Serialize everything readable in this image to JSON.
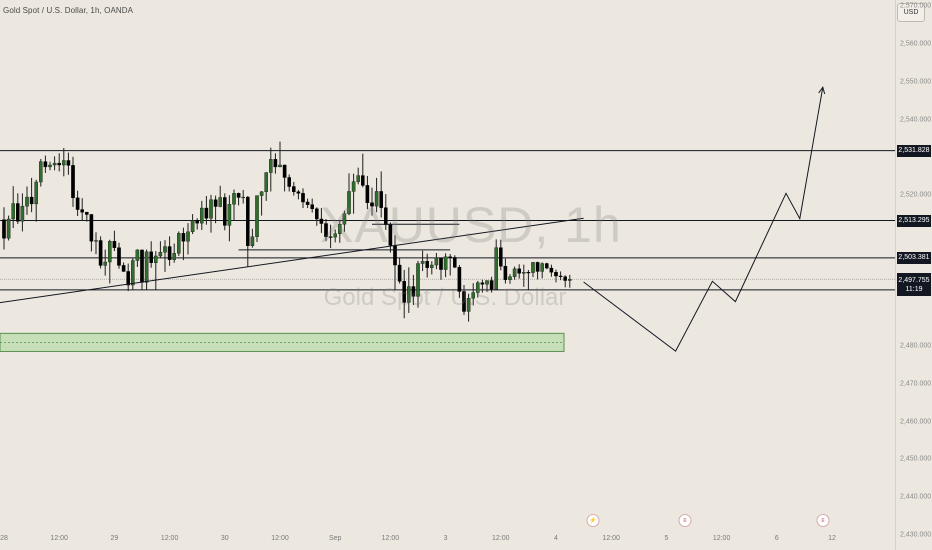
{
  "header": {
    "title": "Gold Spot / U.S. Dollar, 1h, OANDA"
  },
  "currency_button": "USD",
  "watermark": {
    "symbol": "XAUUSD, 1h",
    "description": "Gold Spot / U.S. Dollar"
  },
  "price_axis": {
    "ticks": [
      "2,570.000",
      "2,560.000",
      "2,550.000",
      "2,540.000",
      "2,520.000",
      "2,480.000",
      "2,470.000",
      "2,460.000",
      "2,450.000",
      "2,440.000",
      "2,430.000"
    ],
    "tick_values": [
      2570,
      2560,
      2550,
      2540,
      2520,
      2480,
      2470,
      2460,
      2450,
      2440,
      2430
    ]
  },
  "time_axis": {
    "labels": [
      "28",
      "12:00",
      "29",
      "12:00",
      "30",
      "12:00",
      "Sep",
      "12:00",
      "3",
      "12:00",
      "4",
      "12:00",
      "5",
      "12:00",
      "6",
      "12"
    ],
    "label_index": [
      0,
      12,
      24,
      36,
      48,
      60,
      72,
      84,
      96,
      108,
      120,
      132,
      144,
      156,
      168,
      180
    ]
  },
  "levels": [
    {
      "label": "2,531.828",
      "value": 2531.828
    },
    {
      "label": "2,513.295",
      "value": 2513.295
    },
    {
      "label": "2,503.381",
      "value": 2503.381
    },
    {
      "label": "2,494.928",
      "value": 2494.928
    }
  ],
  "current_price": {
    "value_label": "2,497.755",
    "value": 2497.755,
    "countdown": "11:19"
  },
  "support_zone": {
    "low": 2478.6,
    "high": 2483.4
  },
  "chart_data": {
    "type": "candlestick",
    "symbol": "XAUUSD",
    "title": "Gold Spot / U.S. Dollar, 1h, OANDA",
    "y_range": [
      2426,
      2590
    ],
    "candles": [
      [
        2513.5,
        2516.8,
        2505.6,
        2508.6
      ],
      [
        2508.6,
        2514.6,
        2508.0,
        2513.7
      ],
      [
        2513.7,
        2522.4,
        2511.3,
        2517.8
      ],
      [
        2517.8,
        2520.5,
        2512.4,
        2513.1
      ],
      [
        2513.1,
        2520.5,
        2510.4,
        2517.1
      ],
      [
        2517.1,
        2522.3,
        2514.8,
        2519.5
      ],
      [
        2519.5,
        2524.6,
        2515.5,
        2517.7
      ],
      [
        2517.7,
        2524.1,
        2513.0,
        2523.5
      ],
      [
        2523.5,
        2529.6,
        2522.3,
        2528.9
      ],
      [
        2528.9,
        2530.5,
        2525.9,
        2527.5
      ],
      [
        2527.5,
        2528.9,
        2526.6,
        2528.0
      ],
      [
        2528.0,
        2530.3,
        2526.6,
        2528.5
      ],
      [
        2528.5,
        2531.1,
        2526.3,
        2528.0
      ],
      [
        2528.0,
        2532.5,
        2525.0,
        2529.2
      ],
      [
        2529.2,
        2531.3,
        2525.4,
        2527.9
      ],
      [
        2527.9,
        2530.2,
        2516.9,
        2519.3
      ],
      [
        2519.3,
        2521.2,
        2514.5,
        2516.2
      ],
      [
        2516.2,
        2519.2,
        2513.3,
        2515.5
      ],
      [
        2515.5,
        2515.6,
        2513.0,
        2514.9
      ],
      [
        2514.9,
        2515.0,
        2505.1,
        2507.8
      ],
      [
        2507.8,
        2510.2,
        2504.4,
        2508.0
      ],
      [
        2508.0,
        2509.1,
        2500.6,
        2501.4
      ],
      [
        2501.4,
        2505.6,
        2498.7,
        2502.3
      ],
      [
        2502.3,
        2508.2,
        2496.6,
        2507.8
      ],
      [
        2507.8,
        2510.6,
        2505.2,
        2506.1
      ],
      [
        2506.1,
        2507.4,
        2500.5,
        2501.4
      ],
      [
        2501.4,
        2502.2,
        2499.7,
        2499.8
      ],
      [
        2499.8,
        2501.9,
        2494.6,
        2496.2
      ],
      [
        2496.2,
        2503.5,
        2495.0,
        2502.7
      ],
      [
        2502.7,
        2505.7,
        2501.0,
        2505.5
      ],
      [
        2505.5,
        2505.6,
        2494.9,
        2496.9
      ],
      [
        2496.9,
        2505.6,
        2495.0,
        2505.0
      ],
      [
        2505.0,
        2507.8,
        2500.8,
        2502.1
      ],
      [
        2502.1,
        2505.2,
        2494.9,
        2503.9
      ],
      [
        2503.9,
        2507.8,
        2503.5,
        2504.9
      ],
      [
        2504.9,
        2508.1,
        2499.7,
        2506.4
      ],
      [
        2506.4,
        2509.1,
        2501.3,
        2502.9
      ],
      [
        2502.9,
        2507.2,
        2502.1,
        2504.6
      ],
      [
        2504.6,
        2510.4,
        2503.9,
        2509.9
      ],
      [
        2509.9,
        2511.4,
        2502.8,
        2507.8
      ],
      [
        2507.8,
        2512.6,
        2504.3,
        2510.3
      ],
      [
        2510.3,
        2515.0,
        2509.7,
        2513.3
      ],
      [
        2513.3,
        2513.9,
        2510.9,
        2512.6
      ],
      [
        2512.6,
        2518.5,
        2510.8,
        2516.6
      ],
      [
        2516.6,
        2519.8,
        2512.2,
        2513.9
      ],
      [
        2513.9,
        2520.1,
        2510.1,
        2518.8
      ],
      [
        2518.8,
        2519.9,
        2512.6,
        2517.0
      ],
      [
        2517.0,
        2522.5,
        2516.8,
        2519.4
      ],
      [
        2519.4,
        2520.5,
        2510.7,
        2512.0
      ],
      [
        2512.0,
        2520.0,
        2507.8,
        2517.6
      ],
      [
        2517.6,
        2521.5,
        2513.3,
        2520.5
      ],
      [
        2520.5,
        2520.7,
        2517.3,
        2519.4
      ],
      [
        2519.4,
        2521.4,
        2517.8,
        2519.5
      ],
      [
        2519.5,
        2519.8,
        2501.0,
        2506.6
      ],
      [
        2506.6,
        2511.1,
        2506.1,
        2509.0
      ],
      [
        2509.0,
        2519.9,
        2507.6,
        2519.9
      ],
      [
        2519.9,
        2521.1,
        2514.6,
        2520.9
      ],
      [
        2520.9,
        2526.1,
        2518.5,
        2526.0
      ],
      [
        2526.0,
        2532.6,
        2521.0,
        2529.5
      ],
      [
        2529.5,
        2531.1,
        2525.7,
        2527.5
      ],
      [
        2527.5,
        2534.2,
        2527.4,
        2528.0
      ],
      [
        2528.0,
        2528.1,
        2521.0,
        2524.7
      ],
      [
        2524.7,
        2525.5,
        2521.0,
        2522.3
      ],
      [
        2522.3,
        2523.5,
        2519.9,
        2520.9
      ],
      [
        2520.9,
        2521.4,
        2518.9,
        2520.5
      ],
      [
        2520.5,
        2521.8,
        2516.6,
        2518.2
      ],
      [
        2518.2,
        2519.1,
        2516.6,
        2517.5
      ],
      [
        2517.5,
        2519.1,
        2515.4,
        2516.4
      ],
      [
        2516.4,
        2516.8,
        2511.9,
        2513.7
      ],
      [
        2513.7,
        2516.6,
        2510.0,
        2512.5
      ],
      [
        2512.5,
        2513.7,
        2507.9,
        2509.0
      ],
      [
        2509.0,
        2512.2,
        2506.0,
        2508.9
      ],
      [
        2508.9,
        2510.9,
        2507.5,
        2509.8
      ],
      [
        2509.8,
        2513.4,
        2507.4,
        2512.3
      ],
      [
        2512.3,
        2515.9,
        2510.3,
        2515.1
      ],
      [
        2515.1,
        2525.8,
        2514.7,
        2521.0
      ],
      [
        2521.0,
        2525.7,
        2515.1,
        2523.6
      ],
      [
        2523.6,
        2527.3,
        2522.9,
        2525.2
      ],
      [
        2525.2,
        2531.0,
        2522.1,
        2522.6
      ],
      [
        2522.6,
        2525.1,
        2516.3,
        2518.0
      ],
      [
        2518.0,
        2522.0,
        2514.6,
        2517.1
      ],
      [
        2517.1,
        2524.6,
        2515.5,
        2521.0
      ],
      [
        2521.0,
        2526.3,
        2514.1,
        2516.7
      ],
      [
        2516.7,
        2520.3,
        2510.8,
        2512.2
      ],
      [
        2512.2,
        2512.8,
        2504.8,
        2506.7
      ],
      [
        2506.7,
        2509.4,
        2494.9,
        2501.5
      ],
      [
        2501.5,
        2503.4,
        2496.6,
        2497.2
      ],
      [
        2497.2,
        2500.2,
        2487.4,
        2491.6
      ],
      [
        2491.6,
        2500.9,
        2488.8,
        2495.8
      ],
      [
        2495.8,
        2498.9,
        2490.9,
        2493.2
      ],
      [
        2493.2,
        2502.6,
        2490.2,
        2501.9
      ],
      [
        2501.9,
        2505.3,
        2499.9,
        2502.5
      ],
      [
        2502.5,
        2504.5,
        2498.2,
        2500.8
      ],
      [
        2500.8,
        2502.5,
        2499.0,
        2501.5
      ],
      [
        2501.5,
        2504.7,
        2500.4,
        2503.4
      ],
      [
        2503.4,
        2503.4,
        2497.6,
        2500.3
      ],
      [
        2500.3,
        2504.6,
        2498.3,
        2503.7
      ],
      [
        2503.7,
        2504.4,
        2498.7,
        2503.5
      ],
      [
        2503.5,
        2504.1,
        2500.7,
        2500.9
      ],
      [
        2500.9,
        2501.5,
        2492.8,
        2494.5
      ],
      [
        2494.5,
        2496.2,
        2488.3,
        2489.2
      ],
      [
        2489.2,
        2493.9,
        2486.5,
        2492.7
      ],
      [
        2492.7,
        2496.7,
        2490.8,
        2494.2
      ],
      [
        2494.2,
        2497.3,
        2492.9,
        2496.8
      ],
      [
        2496.8,
        2497.6,
        2494.2,
        2496.4
      ],
      [
        2496.4,
        2497.4,
        2494.4,
        2497.4
      ],
      [
        2497.4,
        2498.4,
        2494.2,
        2495.1
      ],
      [
        2495.1,
        2508.3,
        2494.9,
        2506.1
      ],
      [
        2506.1,
        2508.2,
        2500.1,
        2501.2
      ],
      [
        2501.2,
        2503.2,
        2496.6,
        2497.6
      ],
      [
        2497.6,
        2499.1,
        2496.5,
        2498.4
      ],
      [
        2498.4,
        2501.1,
        2497.6,
        2500.5
      ],
      [
        2500.5,
        2501.7,
        2497.9,
        2499.3
      ],
      [
        2499.3,
        2501.6,
        2495.7,
        2499.6
      ],
      [
        2499.6,
        2500.2,
        2494.8,
        2499.5
      ],
      [
        2499.5,
        2502.3,
        2498.3,
        2502.2
      ],
      [
        2502.2,
        2502.4,
        2497.7,
        2499.8
      ],
      [
        2499.8,
        2502.2,
        2498.0,
        2501.9
      ],
      [
        2501.9,
        2502.1,
        2500.4,
        2500.7
      ],
      [
        2500.7,
        2501.6,
        2498.4,
        2499.6
      ],
      [
        2499.6,
        2500.3,
        2496.9,
        2498.6
      ],
      [
        2498.6,
        2499.8,
        2497.5,
        2498.4
      ],
      [
        2498.4,
        2498.8,
        2495.6,
        2497.4
      ],
      [
        2497.4,
        2498.9,
        2495.5,
        2497.755
      ]
    ]
  },
  "drawings": {
    "trendlines": [
      {
        "from": [
          -4,
          2491.0
        ],
        "to": [
          126,
          2513.9
        ]
      },
      {
        "from": [
          51,
          2505.5
        ],
        "to": [
          97,
          2505.5
        ]
      },
      {
        "from": [
          80,
          2512.3
        ],
        "to": [
          99,
          2512.3
        ]
      }
    ],
    "projection": [
      [
        126,
        2497.0
      ],
      [
        146,
        2478.7
      ],
      [
        154,
        2497.2
      ],
      [
        159,
        2491.8
      ],
      [
        170,
        2520.5
      ],
      [
        173,
        2513.8
      ],
      [
        178,
        2548.6
      ]
    ]
  },
  "events": [
    {
      "index": 128,
      "icon": "flash-icon",
      "glyph": "⚡"
    },
    {
      "index": 148,
      "icon": "us-flag-icon",
      "glyph": "≡"
    },
    {
      "index": 178,
      "icon": "us-flag-icon",
      "glyph": "≡"
    },
    {
      "index": 209,
      "icon": "us-flag-icon",
      "glyph": "≡"
    }
  ],
  "colors": {
    "background": "#ede8df",
    "candle_up": "#2e6e2a",
    "candle_down": "#000000",
    "up_outline": "#1e1e1e",
    "zone_fill": "#c6dfb9",
    "zone_border": "#5b8f4f",
    "line": "#131722",
    "tag_bg": "#131722"
  }
}
